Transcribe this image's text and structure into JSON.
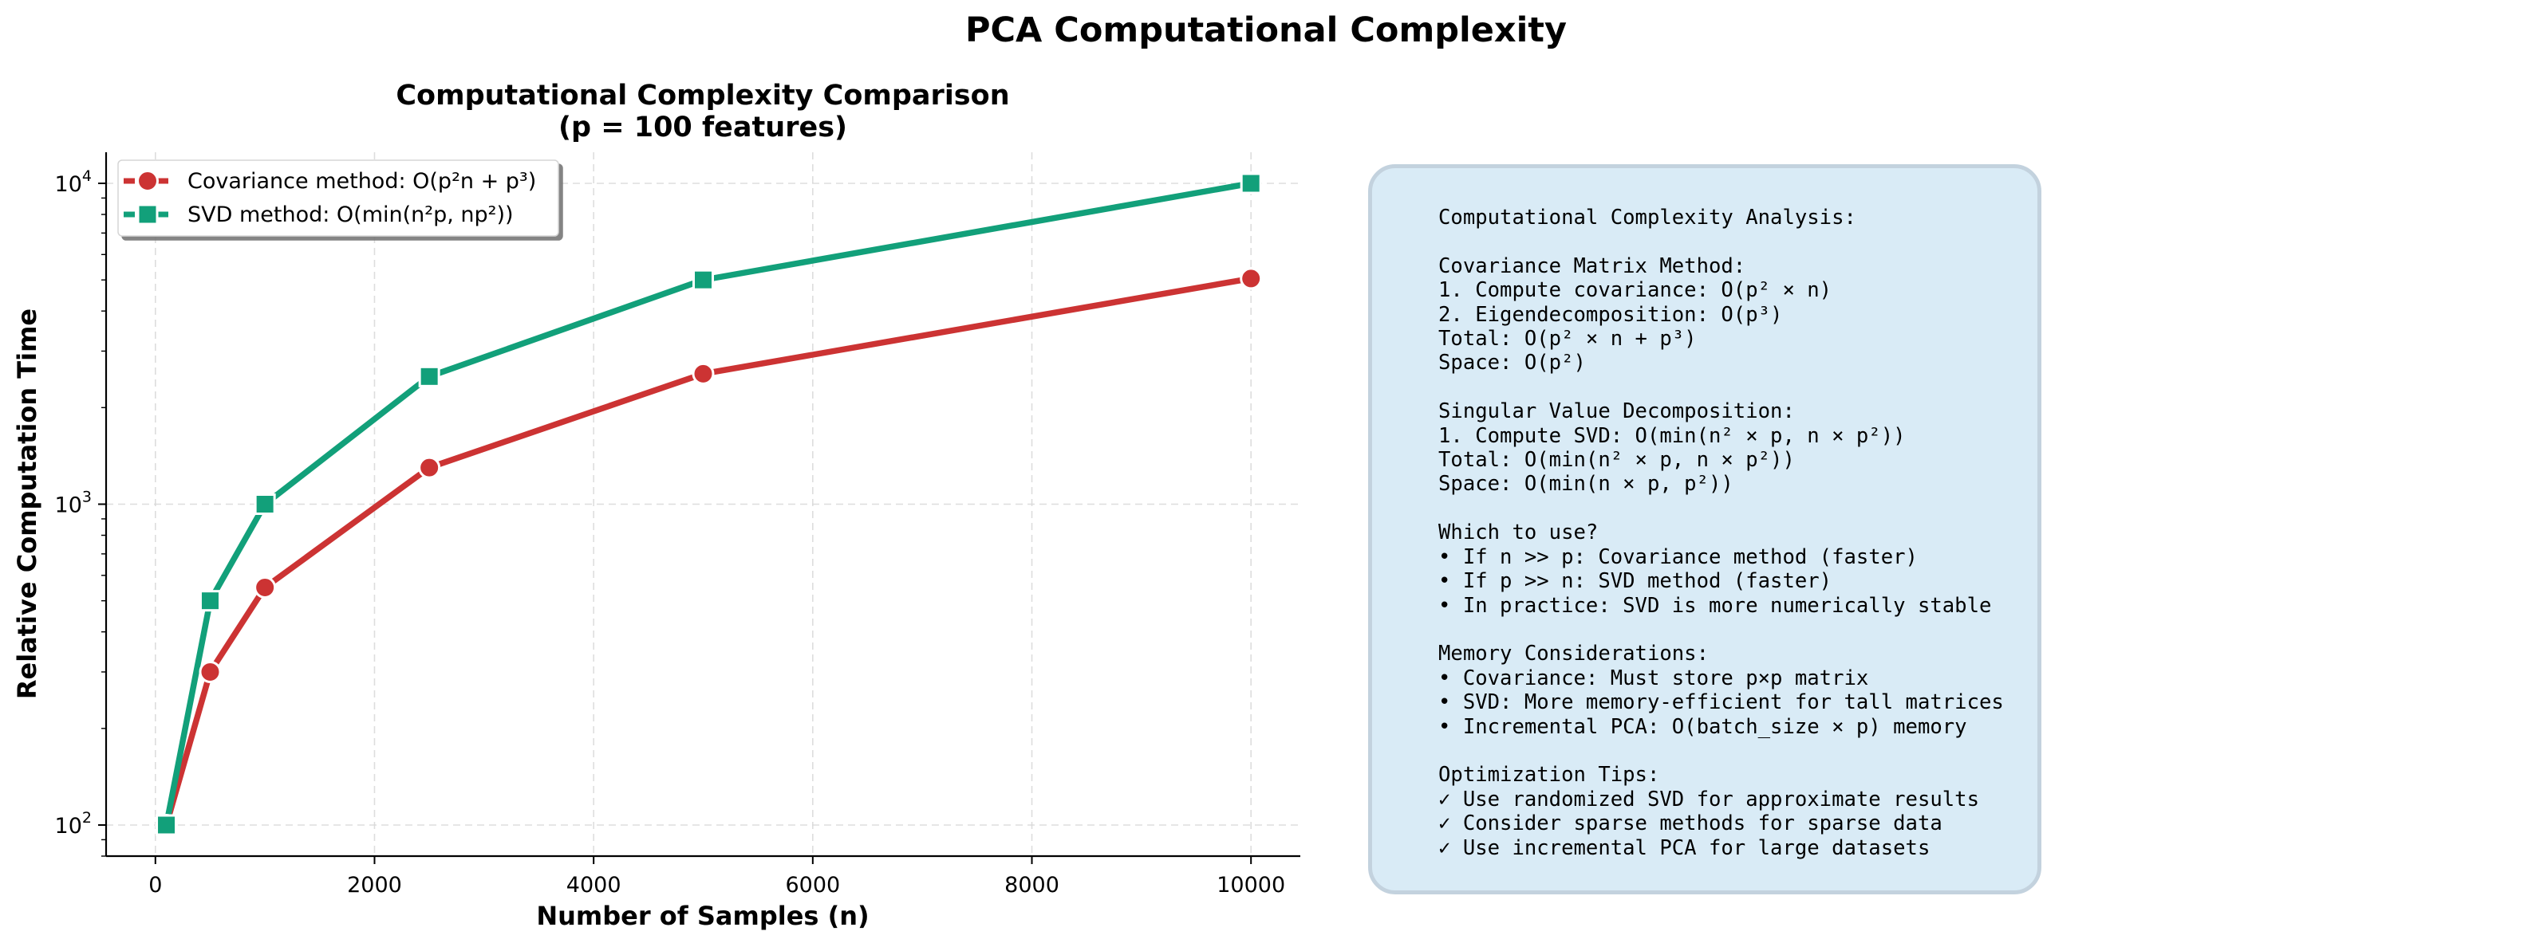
{
  "figure": {
    "suptitle": "PCA Computational Complexity"
  },
  "chart_data": {
    "type": "line",
    "title_line1": "Computational Complexity Comparison",
    "title_line2": "(p = 100 features)",
    "xlabel": "Number of Samples (n)",
    "ylabel": "Relative Computation Time",
    "xscale": "linear",
    "yscale": "log",
    "xlim": [
      -450,
      10450
    ],
    "ylim": [
      80,
      12500
    ],
    "xticks": [
      0,
      2000,
      4000,
      6000,
      8000,
      10000
    ],
    "xtick_labels": [
      "0",
      "2000",
      "4000",
      "6000",
      "8000",
      "10000"
    ],
    "yticks": [
      100,
      1000,
      10000
    ],
    "ytick_labels": [
      {
        "base": "10",
        "exp": "2"
      },
      {
        "base": "10",
        "exp": "3"
      },
      {
        "base": "10",
        "exp": "4"
      }
    ],
    "grid": true,
    "legend_position": "top-left",
    "x": [
      100,
      500,
      1000,
      2500,
      5000,
      10000
    ],
    "series": [
      {
        "name": "Covariance method: O(p²n + p³)",
        "color": "#cc3333",
        "marker": "circle",
        "values": [
          100,
          300,
          550,
          1300,
          2550,
          5050
        ]
      },
      {
        "name": "SVD method: O(min(n²p, np²))",
        "color": "#12a07a",
        "marker": "square",
        "values": [
          100,
          500,
          1000,
          2500,
          5000,
          10000
        ]
      }
    ]
  },
  "info_panel": {
    "lines": [
      "Computational Complexity Analysis:",
      "",
      "Covariance Matrix Method:",
      "1. Compute covariance: O(p² × n)",
      "2. Eigendecomposition: O(p³)",
      "Total: O(p² × n + p³)",
      "Space: O(p²)",
      "",
      "Singular Value Decomposition:",
      "1. Compute SVD: O(min(n² × p, n × p²))",
      "Total: O(min(n² × p, n × p²))",
      "Space: O(min(n × p, p²))",
      "",
      "Which to use?",
      "• If n >> p: Covariance method (faster)",
      "• If p >> n: SVD method (faster)",
      "• In practice: SVD is more numerically stable",
      "",
      "Memory Considerations:",
      "• Covariance: Must store p×p matrix",
      "• SVD: More memory-efficient for tall matrices",
      "• Incremental PCA: O(batch_size × p) memory",
      "",
      "Optimization Tips:",
      "✓ Use randomized SVD for approximate results",
      "✓ Consider sparse methods for sparse data",
      "✓ Use incremental PCA for large datasets"
    ]
  }
}
